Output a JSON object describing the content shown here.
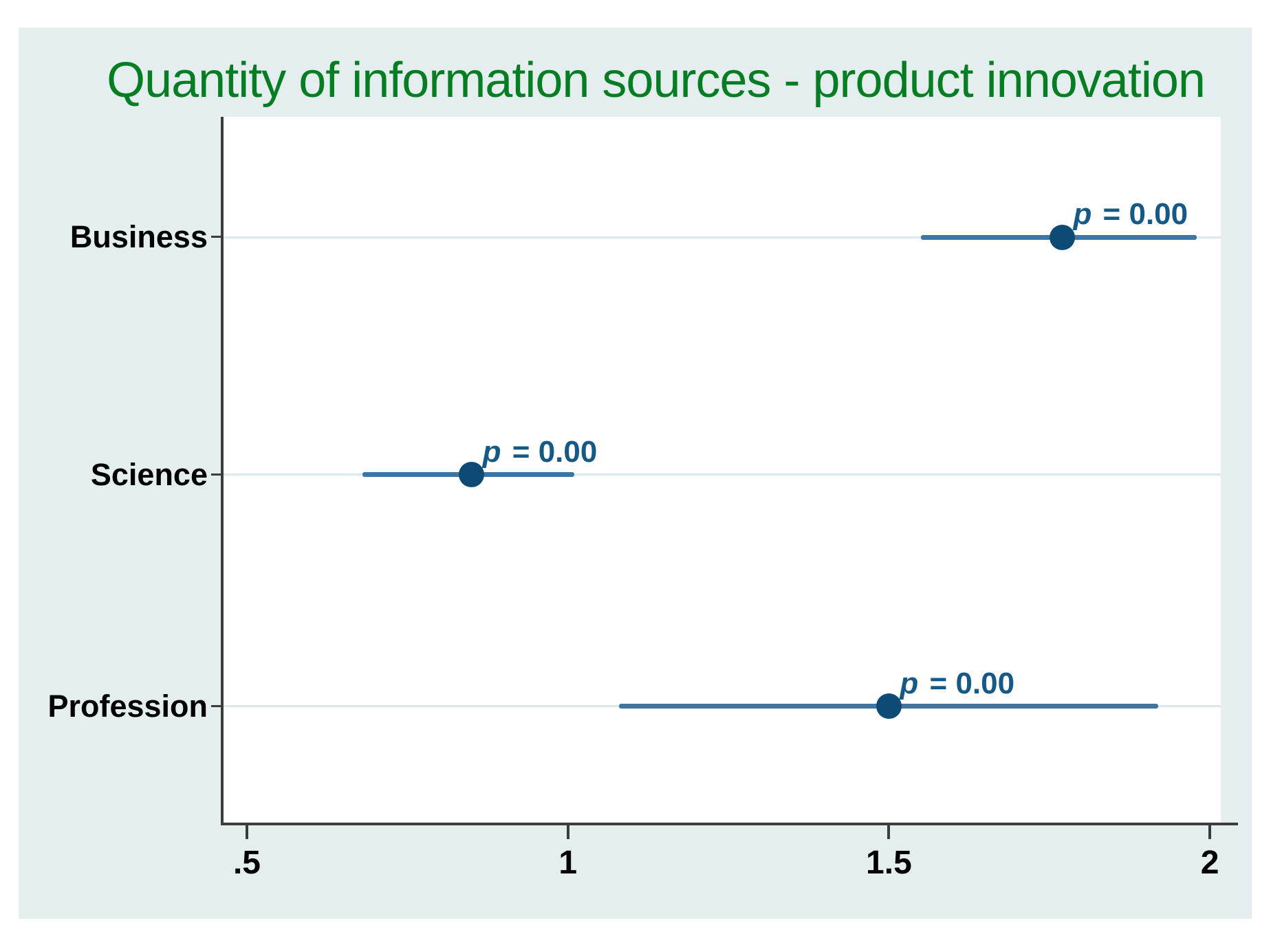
{
  "chart_data": {
    "type": "scatter",
    "subtype": "dot-and-ci-coefficient-plot",
    "title": "Quantity of information sources - product innovation",
    "categories": [
      "Business",
      "Science",
      "Profession"
    ],
    "rows": [
      {
        "label": "Business",
        "estimate": 1.77,
        "ci_low": 1.55,
        "ci_high": 1.98,
        "p_label": "p = 0.00"
      },
      {
        "label": "Science",
        "estimate": 0.85,
        "ci_low": 0.68,
        "ci_high": 1.01,
        "p_label": "p = 0.00"
      },
      {
        "label": "Profession",
        "estimate": 1.5,
        "ci_low": 1.08,
        "ci_high": 1.92,
        "p_label": "p = 0.00"
      }
    ],
    "x_ticks": [
      {
        "value": 0.5,
        "label": ".5"
      },
      {
        "value": 1.0,
        "label": "1"
      },
      {
        "value": 1.5,
        "label": "1.5"
      },
      {
        "value": 2.0,
        "label": "2"
      }
    ],
    "xlim": [
      0.4636,
      2.017
    ],
    "xlabel": "",
    "ylabel": "",
    "grid": true,
    "legend": "none",
    "layout": {
      "row_fractions": [
        0.1704,
        0.5073,
        0.8354
      ]
    },
    "colors": {
      "canvas_background": "#e4eeef",
      "plot_background": "#ffffff",
      "title_green": "#077d23",
      "ci_line_blue": "#3e75a3",
      "marker_navy": "#0d4b74",
      "p_text_blue": "#155a86",
      "gridline": "#dce9ee",
      "axis": "#3c3c3c",
      "tick_text": "#000000"
    }
  }
}
